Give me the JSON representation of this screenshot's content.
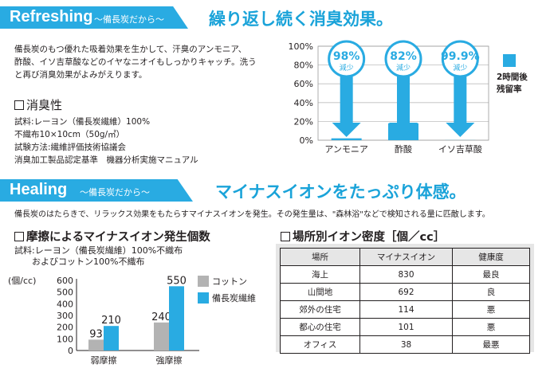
{
  "section1": {
    "banner": "Refreshing",
    "banner_sub": "～備長炭だから～",
    "headline": "繰り返し続く消臭効果。",
    "paragraph": [
      "備長炭のもつ優れた吸着効果を生かして、汗臭のアンモニア、",
      "酢酸、イソ吉草酸などのイヤなニオイもしっかりキャッチ。洗う",
      "と再び消臭効果がよみがえります。"
    ],
    "test_title": "消臭性",
    "test_lines": [
      "試料:レーヨン（備長炭繊維）100%",
      "不織布10×10cm（50g/㎡）",
      "試験方法:繊維評価技術協議会",
      "消臭加工製品認定基準　機器分析実施マニュアル"
    ]
  },
  "section2": {
    "banner": "Healing",
    "banner_sub": "～備長炭だから～",
    "headline": "マイナスイオンをたっぷり体感。",
    "paragraph": "備長炭のはたらきで、リラックス効果をもたらすマイナスイオンを発生。その発生量は、\"森林浴\"などで検知される量に匹敵します。",
    "friction_title": "摩擦によるマイナスイオン発生個数",
    "friction_sample": [
      "試料:レーヨン（備長炭繊維）100%不織布",
      "　　およびコットン100%不織布"
    ],
    "density_title": "場所別イオン密度［個／cc］"
  },
  "colors": {
    "accent": "#29abe2",
    "gray": "#b3b3b3",
    "text": "#231f20"
  },
  "chart_data": [
    {
      "type": "bar",
      "categories": [
        "アンモニア",
        "酢酸",
        "イソ吉草酸"
      ],
      "series": [
        {
          "name": "2時間後残留率",
          "values": [
            2,
            18,
            0.1
          ]
        }
      ],
      "reduction_labels": [
        "98%",
        "82%",
        "99.9%"
      ],
      "reduction_word": "減少",
      "ylim": [
        0,
        100
      ],
      "yticks": [
        "100%",
        "80%",
        "60%",
        "40%",
        "20%",
        "0%"
      ],
      "legend": [
        "2時間後",
        "残留率"
      ],
      "grid": true
    },
    {
      "type": "bar",
      "categories": [
        "弱摩擦",
        "強摩擦"
      ],
      "series": [
        {
          "name": "コットン",
          "values": [
            93,
            240
          ]
        },
        {
          "name": "備長炭繊維",
          "values": [
            210,
            550
          ]
        }
      ],
      "ylabel": "(個/cc)",
      "ylim": [
        0,
        600
      ],
      "yticks": [
        "600",
        "500",
        "400",
        "300",
        "200",
        "100",
        "0"
      ],
      "legend_placement": "right"
    },
    {
      "type": "table",
      "columns": [
        "場所",
        "マイナスイオン",
        "健康度"
      ],
      "rows": [
        [
          "海上",
          "830",
          "最良"
        ],
        [
          "山間地",
          "692",
          "良"
        ],
        [
          "郊外の住宅",
          "114",
          "悪"
        ],
        [
          "都心の住宅",
          "101",
          "悪"
        ],
        [
          "オフィス",
          "38",
          "最悪"
        ]
      ]
    }
  ]
}
